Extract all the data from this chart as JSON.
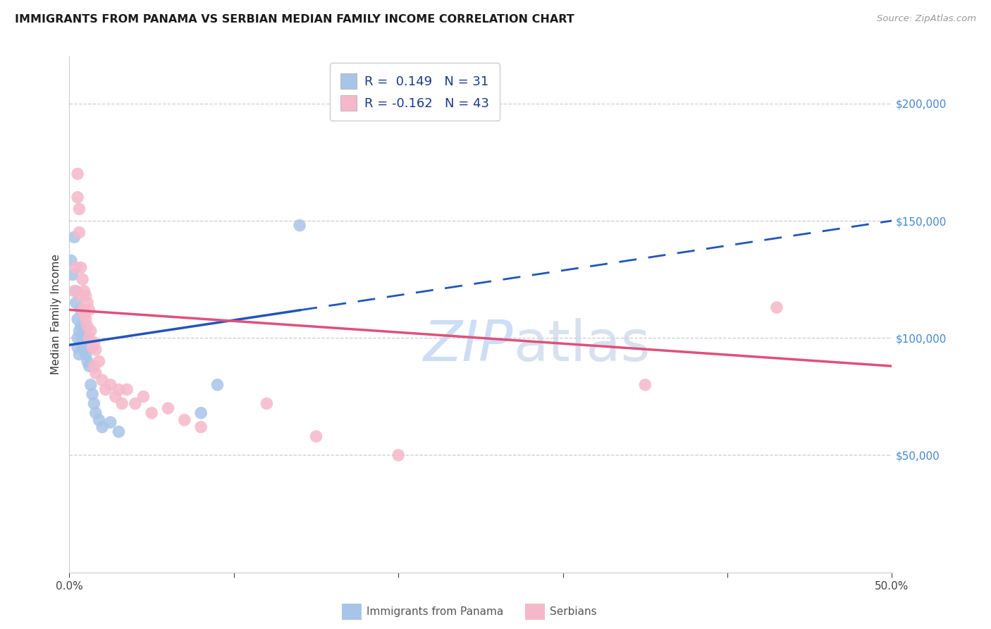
{
  "title": "IMMIGRANTS FROM PANAMA VS SERBIAN MEDIAN FAMILY INCOME CORRELATION CHART",
  "source": "Source: ZipAtlas.com",
  "ylabel": "Median Family Income",
  "xlim": [
    0.0,
    0.5
  ],
  "ylim": [
    0,
    220000
  ],
  "legend1_R": " 0.149",
  "legend1_N": "31",
  "legend2_R": "-0.162",
  "legend2_N": "43",
  "panama_color": "#a8c4e8",
  "serbian_color": "#f5b8cb",
  "panama_line_color": "#2255bb",
  "serbian_line_color": "#e0507a",
  "watermark_color": "#ccddf5",
  "title_color": "#1a1a1a",
  "source_color": "#999999",
  "ylabel_color": "#333333",
  "ytick_color": "#4488cc",
  "grid_color": "#cccccc",
  "panama_x": [
    0.001,
    0.002,
    0.003,
    0.004,
    0.004,
    0.005,
    0.005,
    0.005,
    0.006,
    0.006,
    0.007,
    0.007,
    0.008,
    0.008,
    0.009,
    0.009,
    0.01,
    0.01,
    0.011,
    0.012,
    0.013,
    0.014,
    0.015,
    0.016,
    0.018,
    0.02,
    0.025,
    0.03,
    0.08,
    0.09,
    0.14
  ],
  "panama_y": [
    133000,
    127000,
    143000,
    120000,
    115000,
    108000,
    100000,
    96000,
    103000,
    93000,
    112000,
    105000,
    100000,
    96000,
    103000,
    95000,
    100000,
    93000,
    90000,
    88000,
    80000,
    76000,
    72000,
    68000,
    65000,
    62000,
    64000,
    60000,
    68000,
    80000,
    148000
  ],
  "serbian_x": [
    0.003,
    0.004,
    0.005,
    0.005,
    0.006,
    0.006,
    0.007,
    0.007,
    0.008,
    0.008,
    0.009,
    0.009,
    0.01,
    0.01,
    0.011,
    0.011,
    0.012,
    0.012,
    0.013,
    0.014,
    0.015,
    0.015,
    0.016,
    0.016,
    0.018,
    0.02,
    0.022,
    0.025,
    0.028,
    0.03,
    0.032,
    0.035,
    0.04,
    0.045,
    0.05,
    0.06,
    0.07,
    0.08,
    0.12,
    0.15,
    0.2,
    0.35,
    0.43
  ],
  "serbian_y": [
    120000,
    130000,
    170000,
    160000,
    155000,
    145000,
    130000,
    118000,
    125000,
    112000,
    120000,
    110000,
    118000,
    108000,
    115000,
    105000,
    112000,
    100000,
    103000,
    96000,
    98000,
    88000,
    95000,
    85000,
    90000,
    82000,
    78000,
    80000,
    75000,
    78000,
    72000,
    78000,
    72000,
    75000,
    68000,
    70000,
    65000,
    62000,
    72000,
    58000,
    50000,
    80000,
    113000
  ],
  "panama_line_x0": 0.0,
  "panama_line_y0": 97000,
  "panama_line_x1": 0.5,
  "panama_line_y1": 150000,
  "serbian_line_x0": 0.0,
  "serbian_line_y0": 112000,
  "serbian_line_x1": 0.5,
  "serbian_line_y1": 88000
}
